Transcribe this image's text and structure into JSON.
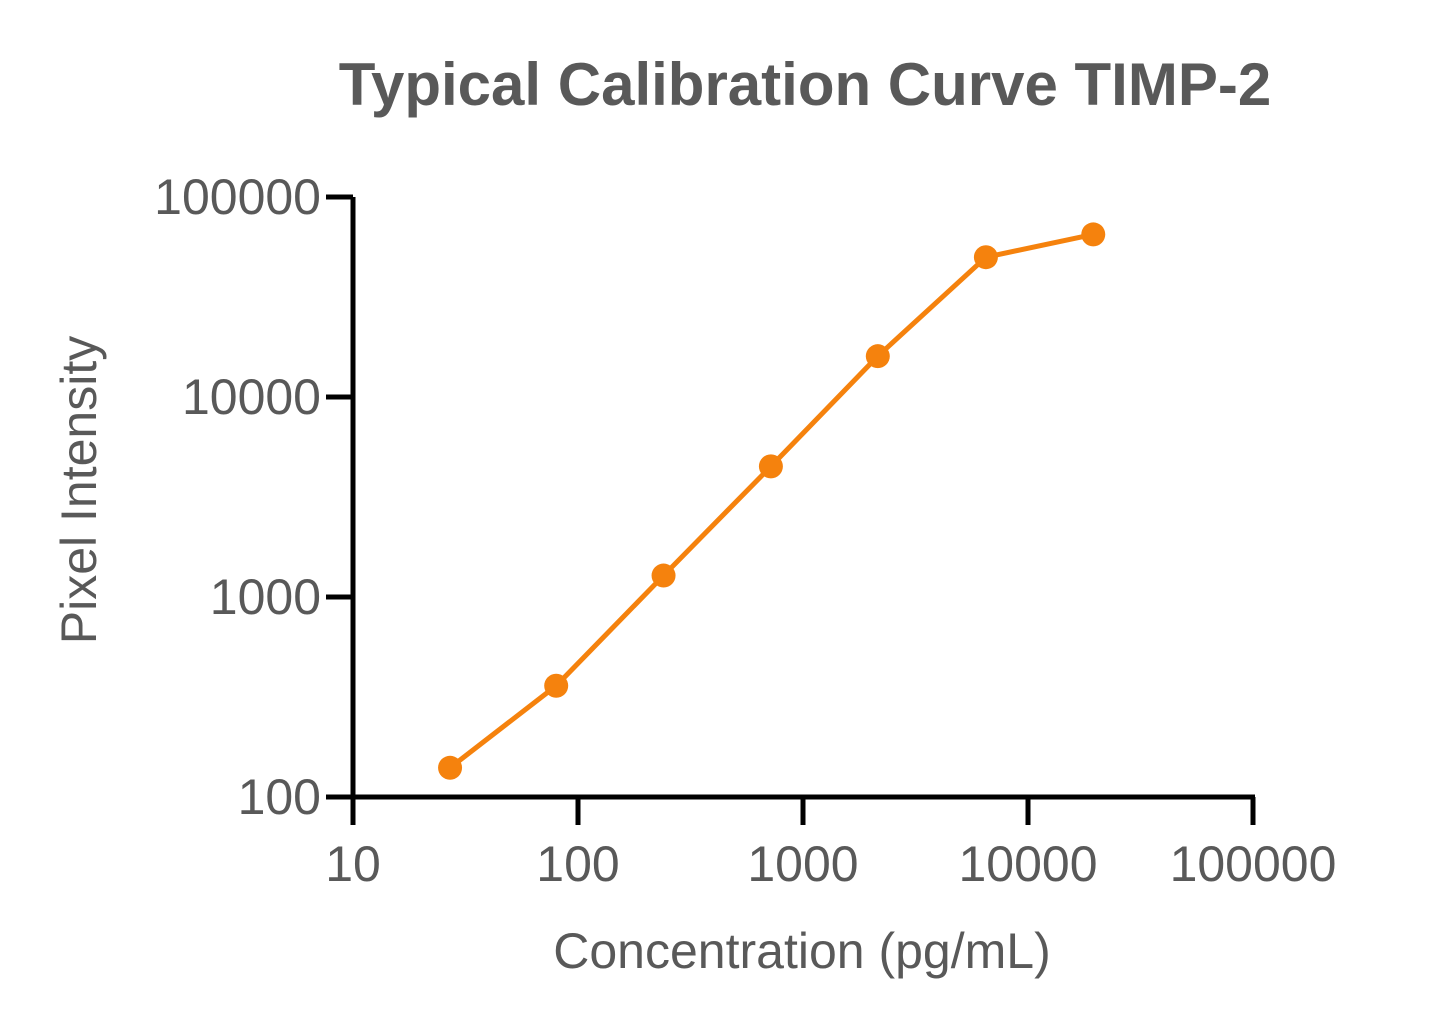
{
  "chart_data": {
    "type": "line",
    "title": "Typical Calibration Curve TIMP-2",
    "xlabel": "Concentration (pg/mL)",
    "ylabel": "Pixel Intensity",
    "xscale": "log",
    "yscale": "log",
    "xlim": [
      10,
      100000
    ],
    "ylim": [
      100,
      100000
    ],
    "xticks": [
      "10",
      "100",
      "1000",
      "10000",
      "100000"
    ],
    "yticks": [
      "100",
      "1000",
      "10000",
      "100000"
    ],
    "grid": false,
    "legend": "none",
    "series": [
      {
        "color": "#f5820d",
        "x": [
          27,
          80,
          240,
          720,
          2150,
          6500,
          19500
        ],
        "y": [
          140,
          360,
          1280,
          4500,
          16000,
          50000,
          65000
        ]
      }
    ]
  }
}
